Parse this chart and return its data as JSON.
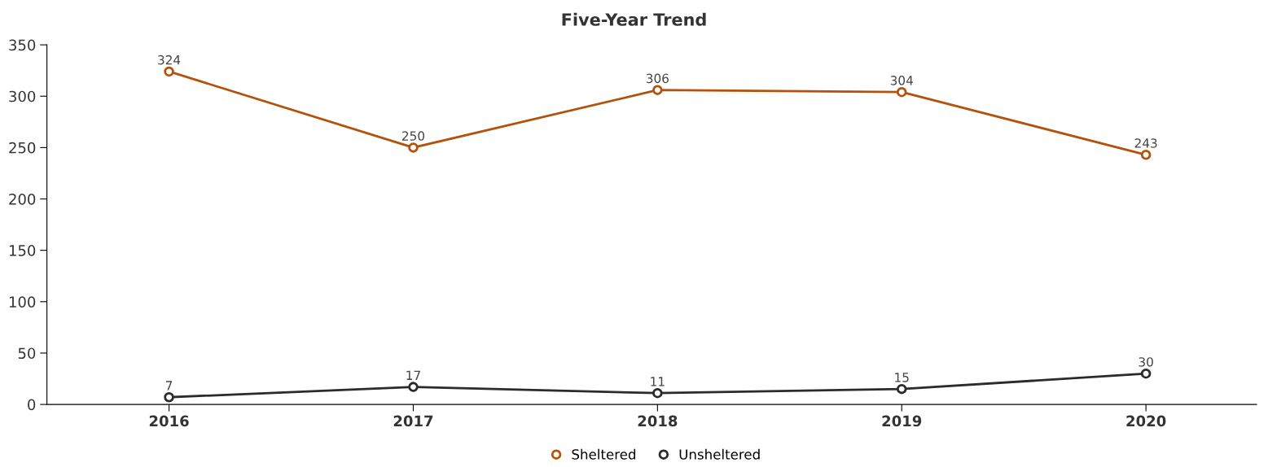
{
  "chart_data": {
    "type": "line",
    "title": "Five-Year Trend",
    "categories": [
      "2016",
      "2017",
      "2018",
      "2019",
      "2020"
    ],
    "series": [
      {
        "name": "Sheltered",
        "color": "#b5520a",
        "values": [
          324,
          250,
          306,
          304,
          243
        ]
      },
      {
        "name": "Unsheltered",
        "color": "#2b2b2b",
        "values": [
          7,
          17,
          11,
          15,
          30
        ]
      }
    ],
    "ylim": [
      0,
      350
    ],
    "yticks": [
      0,
      50,
      100,
      150,
      200,
      250,
      300,
      350
    ],
    "grid": false,
    "legend": "bottom",
    "marker": "circle",
    "line_style": "solid",
    "data_labels": true
  }
}
